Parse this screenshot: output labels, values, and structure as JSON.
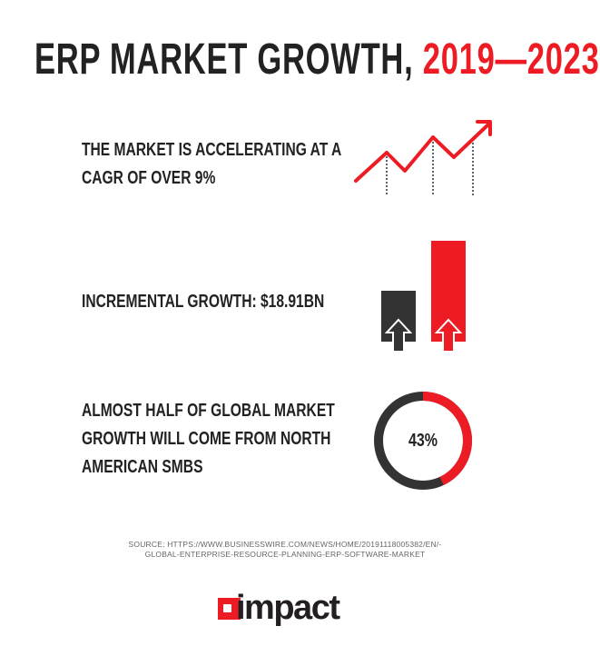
{
  "title": {
    "main": "ERP MARKET GROWTH, ",
    "years": "2019—2023"
  },
  "stats": [
    {
      "line1": "THE MARKET IS ACCELERATING AT A",
      "line2": "CAGR OF OVER 9%",
      "icon": "trend-line-arrow"
    },
    {
      "line1": "INCREMENTAL GROWTH: $18.91BN",
      "icon": "growth-bars"
    },
    {
      "line1": "ALMOST HALF OF GLOBAL MARKET",
      "line2": "GROWTH WILL COME FROM NORTH",
      "line3": "AMERICAN SMBS",
      "icon": "donut",
      "percent_label": "43%",
      "percent": 43
    }
  ],
  "source": {
    "line1": "SOURCE: HTTPS://WWW.BUSINESSWIRE.COM/NEWS/HOME/20191118005382/EN/-",
    "line2": "GLOBAL-ENTERPRISE-RESOURCE-PLANNING-ERP-SOFTWARE-MARKET"
  },
  "logo": {
    "text": "impact"
  },
  "colors": {
    "accent": "#ed1c24",
    "dark": "#333333",
    "dotted": "#5a6670"
  }
}
